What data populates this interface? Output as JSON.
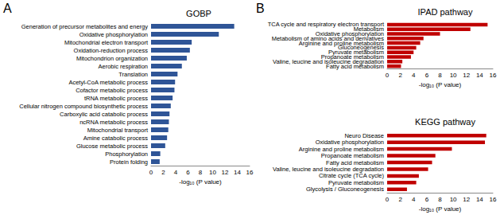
{
  "chart_data": [
    {
      "type": "bar",
      "orientation": "horizontal",
      "title": "GOBP",
      "annotations": [
        "A"
      ],
      "xlabel": "-log₁₀ (P value)",
      "categories": [
        "Generation of precursor metabolites and energy",
        "Oxidative phosphorylation",
        "Mitochondrial electron transport",
        "Oxidation-reduction process",
        "Mitochondrion organization",
        "Aerobic respiration",
        "Translation",
        "Acetyl-CoA metabolic process",
        "Cofactor metabolic process",
        "tRNA metabolic process",
        "Cellular nitrogen compound biosynthetic process",
        "Carboxylic acid catabolic process",
        "ncRNA metabolic process",
        "Mitochondrial transport",
        "Amine catabolic process",
        "Glucose metabolic process",
        "Phosphorylation",
        "Protein folding"
      ],
      "values": [
        13.5,
        11,
        6.6,
        6.3,
        5.8,
        5,
        4.3,
        3.9,
        3.8,
        3.5,
        3.2,
        3,
        2.9,
        2.8,
        2.6,
        2.3,
        1.5,
        1.4
      ],
      "color": "#2f5597",
      "xlim": [
        0,
        16
      ],
      "xticks": [
        0,
        2,
        4,
        6,
        8,
        10,
        12,
        14,
        16
      ],
      "grid": false
    },
    {
      "type": "bar",
      "orientation": "horizontal",
      "title": "IPAD pathway",
      "annotations": [
        "B"
      ],
      "xlabel": "-log₁₀ (P value)",
      "categories": [
        "TCA cycle and respiratory electron transport",
        "Metabolism",
        "Oxidative phosphorylation",
        "Metabolism of amino acids and derivatives",
        "Arginine and proline metabolism",
        "Gluconeogenesis",
        "Pyruvate metabolism",
        "Propanoate metabolism",
        "Valine, leucine and isoleucine degradation",
        "Fatty acid metabolism"
      ],
      "values": [
        15.2,
        12.6,
        8,
        5.5,
        5,
        4.4,
        4,
        3.6,
        2.3,
        2.1
      ],
      "color": "#c00000",
      "xlim": [
        0,
        16
      ],
      "xticks": [
        0,
        2,
        4,
        6,
        8,
        10,
        12,
        14,
        16
      ],
      "grid": false
    },
    {
      "type": "bar",
      "orientation": "horizontal",
      "title": "KEGG pathway",
      "xlabel": "-log₁₀ (P value)",
      "categories": [
        "Neuro Disease",
        "Oxidative phosphorylation",
        "Arginine and proline metabolism",
        "Propanoate metabolism",
        "Fatty acid metabolism",
        "Valine, leucine and isoleucine degradation",
        "Citrate cycle (TCA cycle)",
        "Pyruvate metabolism",
        "Glycolysis / Gluconeogenesis"
      ],
      "values": [
        15,
        14.8,
        9.8,
        7.3,
        6.8,
        6.2,
        4.8,
        4.4,
        3
      ],
      "color": "#c00000",
      "xlim": [
        0,
        16
      ],
      "xticks": [
        0,
        2,
        4,
        6,
        8,
        10,
        12,
        14,
        16
      ],
      "grid": false
    }
  ]
}
